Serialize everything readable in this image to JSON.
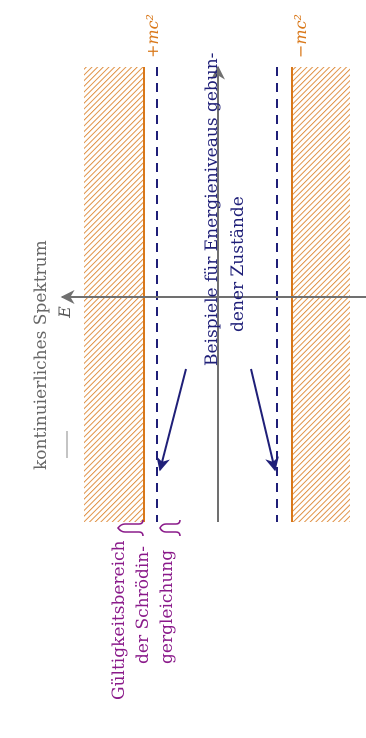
{
  "labels": {
    "spectrum": "kontinuierliches Spektrum",
    "energy_axis": "E",
    "plus_mc2": "+mc²",
    "minus_mc2": "−mc²",
    "bound_states_line1": "Beispiele für Energieniveaus gebun-",
    "bound_states_line2": "dener Zustände",
    "validity_line1": "Gültigkeitsbereich",
    "validity_line2": "der Schrödin-",
    "validity_line3": "gergleichung"
  },
  "colors": {
    "orange": "#d9781a",
    "navy": "#1f1f78",
    "purple": "#8a1a8a",
    "axis_gray": "#707070",
    "text_gray": "#666666"
  }
}
